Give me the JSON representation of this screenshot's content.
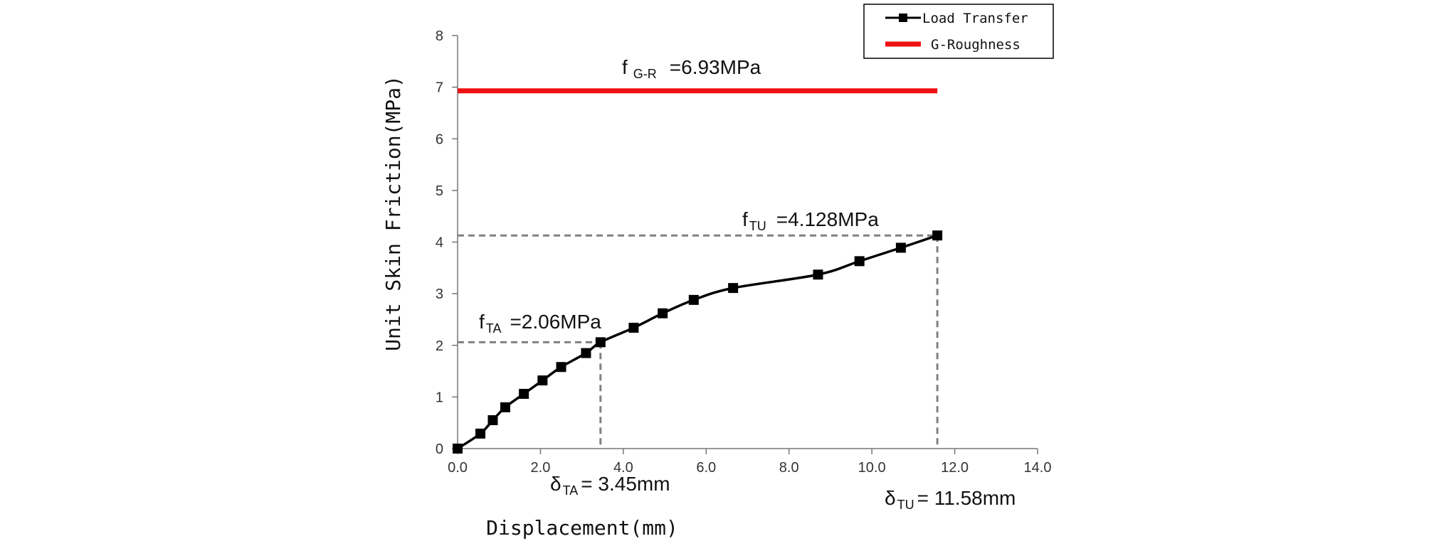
{
  "chart_data": {
    "type": "line",
    "xlabel": "Displacement(mm)",
    "ylabel": "Unit Skin Friction(MPa)",
    "xlim": [
      0,
      14
    ],
    "ylim": [
      0,
      8
    ],
    "x_ticks": [
      "0.0",
      "2.0",
      "4.0",
      "6.0",
      "8.0",
      "10.0",
      "12.0",
      "14.0"
    ],
    "y_ticks": [
      "0",
      "1",
      "2",
      "3",
      "4",
      "5",
      "6",
      "7",
      "8"
    ],
    "legend": {
      "position": "top-right",
      "bordered": true
    },
    "series": [
      {
        "name": "Load Transfer",
        "color": "#000000",
        "marker": "square",
        "x": [
          0.0,
          0.55,
          0.85,
          1.15,
          1.6,
          2.05,
          2.5,
          3.1,
          3.45,
          4.25,
          4.95,
          5.7,
          6.65,
          8.7,
          9.7,
          10.7,
          11.58
        ],
        "y": [
          0.0,
          0.29,
          0.55,
          0.8,
          1.06,
          1.32,
          1.58,
          1.85,
          2.06,
          2.34,
          2.62,
          2.88,
          3.11,
          3.37,
          3.63,
          3.89,
          4.128
        ]
      },
      {
        "name": "G-Roughness",
        "color": "#ee1111",
        "x": [
          0.0,
          11.58
        ],
        "y": [
          6.93,
          6.93
        ]
      }
    ],
    "guides": [
      {
        "x": 3.45,
        "y": 2.06
      },
      {
        "x": 11.58,
        "y": 4.128
      }
    ],
    "annotations": {
      "f_gr": {
        "main": "f",
        "sub": "G-R",
        "value": "=6.93MPa"
      },
      "f_tu": {
        "main": "f",
        "sub": "TU",
        "value": "=4.128MPa"
      },
      "f_ta": {
        "main": "f",
        "sub": "TA",
        "value": "=2.06MPa"
      },
      "d_ta": {
        "main": "δ",
        "sub": "TA",
        "value": "= 3.45mm"
      },
      "d_tu": {
        "main": "δ",
        "sub": "TU",
        "value": "= 11.58mm"
      }
    }
  }
}
